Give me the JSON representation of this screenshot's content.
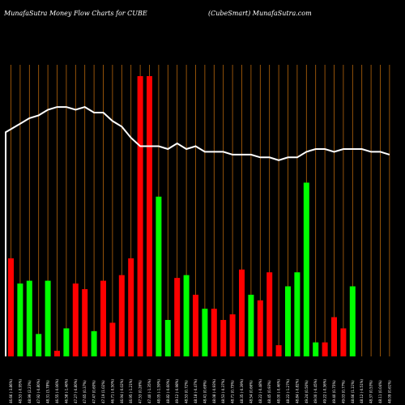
{
  "chart_data": {
    "type": "bar",
    "title": "MunafaSutra  Money Flow  Charts for CUBE",
    "subtitle": "(CubeSmart) MunafaSutra.com",
    "xlabel": "",
    "ylabel": "",
    "ylim": [
      0,
      100
    ],
    "grid": "vertical",
    "colors": {
      "background": "#000000",
      "up": "#00ff00",
      "down": "#ff0000",
      "grid": "#b8660b",
      "line": "#ffffff"
    },
    "categories": [
      "46.66 (-3.86%)",
      "48.53 (-0.95%)",
      "48.99 (2.23%)",
      "47.92 (-0.80%)",
      "48.31 (3.78%)",
      "46.55 (-0.06%)",
      "46.58 (-1.46%)",
      "47.27 (-0.80%)",
      "47.65 (0.37%)",
      "47.47 (0.60%)",
      "47.19 (1.02%)",
      "46.71 (-0.50%)",
      "46.94 (-0.02%)",
      "46.95 (-1.21%)",
      "47.53 (0.26%)",
      "47.40 (-1.35%)",
      "48.05 (-1.59%)",
      "48.82 (-0.60%)",
      "49.12 (-0.98%)",
      "48.53 (0.72%)",
      "48.18 (-0.47%)",
      "48.41 (0.69%)",
      "48.08 (-0.93%)",
      "48.53 (-0.37%)",
      "48.71 (0.75%)",
      "48.35 (-0.39%)",
      "48.54 (0.66%)",
      "48.22 (-0.48%)",
      "48.45 (0.93%)",
      "48.00 (-0.46%)",
      "48.22 (-1.27%)",
      "48.84 (-0.82%)",
      "49.24 (0.50%)",
      "49.00 (-0.45%)",
      "49.22 (-0.36%)",
      "49.40 (0.75%)",
      "49.03 (0.77%)",
      "48.66 (1.11%)",
      "48.12 (-0.51%)",
      "48.37 (0.53%)",
      "48.11 (0.04%)",
      "48.09 (0.61%)"
    ],
    "values": [
      35,
      26,
      27,
      8,
      27,
      2,
      10,
      26,
      24,
      9,
      27,
      12,
      29,
      35,
      100,
      100,
      57,
      13,
      28,
      29,
      22,
      17,
      17,
      13,
      15,
      31,
      22,
      20,
      30,
      4,
      25,
      30,
      62,
      5,
      5,
      14,
      10,
      25,
      0,
      0,
      0,
      0
    ],
    "bar_colors": [
      "down",
      "up",
      "up",
      "up",
      "up",
      "down",
      "up",
      "down",
      "down",
      "up",
      "down",
      "down",
      "down",
      "down",
      "down",
      "down",
      "up",
      "up",
      "down",
      "up",
      "down",
      "up",
      "down",
      "down",
      "down",
      "down",
      "up",
      "down",
      "down",
      "down",
      "up",
      "up",
      "up",
      "up",
      "down",
      "down",
      "down",
      "up",
      "up",
      "up",
      "up",
      "up"
    ],
    "line_values": [
      80,
      83,
      85,
      86,
      88,
      89,
      89,
      88,
      89,
      87,
      87,
      84,
      82,
      78,
      75,
      75,
      75,
      74,
      76,
      74,
      75,
      73,
      73,
      73,
      72,
      72,
      72,
      71,
      71,
      70,
      71,
      71,
      73,
      74,
      74,
      73,
      74,
      74,
      74,
      73,
      73,
      72
    ]
  }
}
